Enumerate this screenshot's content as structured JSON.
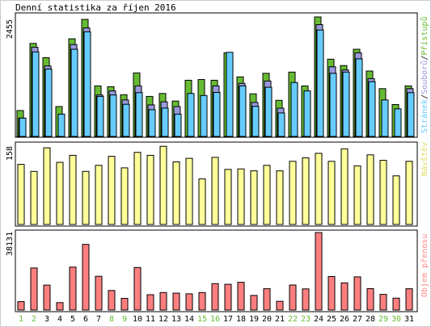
{
  "chart_data": [
    {
      "type": "bar",
      "title": "Denní statistika za říjen 2016",
      "ytick": "2455",
      "side_label_parts": [
        {
          "text": "Stránek",
          "color": "#66ccff"
        },
        {
          "text": "/",
          "color": "#000000"
        },
        {
          "text": "Souborů",
          "color": "#9999dd"
        },
        {
          "text": "/",
          "color": "#000000"
        },
        {
          "text": "Přístupů",
          "color": "#66bb33"
        }
      ],
      "ylim": [
        0,
        2455
      ],
      "categories": [
        "1",
        "2",
        "3",
        "4",
        "5",
        "6",
        "7",
        "8",
        "9",
        "10",
        "11",
        "12",
        "13",
        "14",
        "15",
        "16",
        "17",
        "18",
        "19",
        "20",
        "21",
        "22",
        "23",
        "24",
        "25",
        "26",
        "27",
        "28",
        "29",
        "30",
        "31"
      ],
      "series": [
        {
          "name": "Přístupů",
          "color": "#66bb33",
          "values": [
            532,
            1911,
            1617,
            613,
            2005,
            2406,
            1039,
            1022,
            858,
            1306,
            822,
            883,
            727,
            1155,
            1170,
            1155,
            1719,
            1225,
            876,
            1297,
            741,
            1322,
            1039,
            2455,
            1588,
            1457,
            1792,
            1344,
            982,
            655,
            1039
          ]
        },
        {
          "name": "Souborů",
          "color": "#9999dd",
          "values": [
            376,
            1832,
            1448,
            0,
            1888,
            2230,
            852,
            935,
            749,
            1039,
            648,
            712,
            613,
            0,
            0,
            1039,
            0,
            1090,
            698,
            1140,
            581,
            0,
            0,
            2297,
            1432,
            1366,
            1719,
            1188,
            0,
            0,
            982
          ]
        },
        {
          "name": "Stránek",
          "color": "#66ccff",
          "values": [
            376,
            1736,
            1384,
            458,
            1792,
            2150,
            822,
            852,
            661,
            899,
            549,
            583,
            458,
            882,
            841,
            904,
            1729,
            1039,
            618,
            1010,
            483,
            1108,
            935,
            2186,
            1297,
            1322,
            1594,
            1125,
            750,
            568,
            899
          ]
        }
      ]
    },
    {
      "type": "bar",
      "ytick": "158",
      "side_label": "Návštěv",
      "side_label_color": "#dddd66",
      "ylim": [
        0,
        158
      ],
      "categories": [
        "1",
        "2",
        "3",
        "4",
        "5",
        "6",
        "7",
        "8",
        "9",
        "10",
        "11",
        "12",
        "13",
        "14",
        "15",
        "16",
        "17",
        "18",
        "19",
        "20",
        "21",
        "22",
        "23",
        "24",
        "25",
        "26",
        "27",
        "28",
        "29",
        "30",
        "31"
      ],
      "series": [
        {
          "name": "Návštěv",
          "color": "#ffff99",
          "values": [
            120,
            106,
            153,
            124,
            138,
            106,
            118,
            136,
            113,
            144,
            138,
            156,
            125,
            132,
            91,
            134,
            110,
            111,
            107,
            118,
            107,
            126,
            133,
            142,
            126,
            151,
            117,
            139,
            128,
            97,
            126
          ]
        }
      ]
    },
    {
      "type": "bar",
      "ytick": "38131",
      "side_label": "Objem přenosu",
      "side_label_color": "#ff8888",
      "ylim": [
        0,
        38131
      ],
      "categories": [
        "1",
        "2",
        "3",
        "4",
        "5",
        "6",
        "7",
        "8",
        "9",
        "10",
        "11",
        "12",
        "13",
        "14",
        "15",
        "16",
        "17",
        "18",
        "19",
        "20",
        "21",
        "22",
        "23",
        "24",
        "25",
        "26",
        "27",
        "28",
        "29",
        "30",
        "31"
      ],
      "series": [
        {
          "name": "Objem přenosu",
          "color": "#ff7f7f",
          "values": [
            4140,
            20705,
            12279,
            3641,
            21116,
            32302,
            16616,
            9620,
            5755,
            20945,
            7534,
            8631,
            8288,
            7979,
            8631,
            12998,
            12656,
            13650,
            7191,
            10476,
            4276,
            12314,
            10408,
            38131,
            16478,
            13341,
            16308,
            10545,
            7704,
            5857,
            10476
          ]
        }
      ],
      "x_labels_color": [
        "#66bb33",
        "#66bb33",
        "#000000",
        "#000000",
        "#000000",
        "#000000",
        "#000000",
        "#66bb33",
        "#66bb33",
        "#000000",
        "#000000",
        "#000000",
        "#000000",
        "#000000",
        "#66bb33",
        "#66bb33",
        "#000000",
        "#000000",
        "#000000",
        "#000000",
        "#000000",
        "#66bb33",
        "#66bb33",
        "#000000",
        "#000000",
        "#000000",
        "#000000",
        "#000000",
        "#66bb33",
        "#66bb33",
        "#000000"
      ]
    }
  ]
}
